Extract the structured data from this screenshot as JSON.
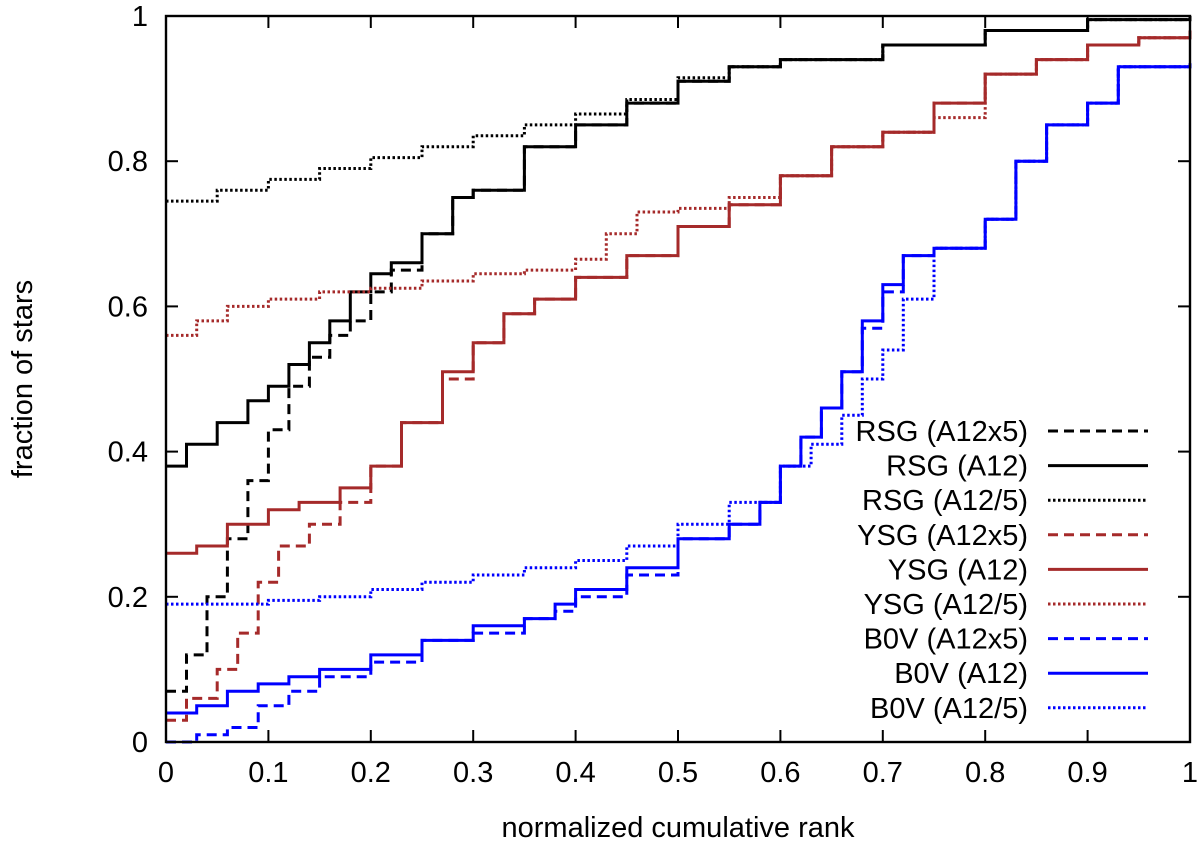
{
  "chart_data": {
    "type": "line",
    "title": "",
    "xlabel": "normalized cumulative rank",
    "ylabel": "fraction of stars",
    "xlim": [
      0,
      1
    ],
    "ylim": [
      0,
      1
    ],
    "x_ticks": [
      0,
      0.1,
      0.2,
      0.3,
      0.4,
      0.5,
      0.6,
      0.7,
      0.8,
      0.9,
      1
    ],
    "x_tick_labels": [
      "0",
      "0.1",
      "0.2",
      "0.3",
      "0.4",
      "0.5",
      "0.6",
      "0.7",
      "0.8",
      "0.9",
      "1"
    ],
    "y_ticks": [
      0,
      0.2,
      0.4,
      0.6,
      0.8,
      1
    ],
    "y_tick_labels": [
      "0",
      "0.2",
      "0.4",
      "0.6",
      "0.8",
      "1"
    ],
    "grid": false,
    "legend_position": "bottom-right",
    "series": [
      {
        "name": "RSG (A12x5)",
        "color": "#000000",
        "dash": "dashed",
        "points": [
          [
            0,
            0.07
          ],
          [
            0.02,
            0.12
          ],
          [
            0.04,
            0.2
          ],
          [
            0.06,
            0.28
          ],
          [
            0.08,
            0.36
          ],
          [
            0.1,
            0.43
          ],
          [
            0.12,
            0.49
          ],
          [
            0.14,
            0.53
          ],
          [
            0.16,
            0.56
          ],
          [
            0.18,
            0.58
          ],
          [
            0.2,
            0.62
          ],
          [
            0.22,
            0.65
          ],
          [
            0.25,
            0.7
          ],
          [
            0.28,
            0.75
          ],
          [
            0.3,
            0.76
          ],
          [
            0.35,
            0.82
          ],
          [
            0.4,
            0.85
          ],
          [
            0.45,
            0.88
          ],
          [
            0.5,
            0.91
          ],
          [
            0.55,
            0.93
          ],
          [
            0.6,
            0.94
          ],
          [
            0.7,
            0.96
          ],
          [
            0.8,
            0.98
          ],
          [
            0.9,
            0.995
          ],
          [
            1,
            1
          ]
        ]
      },
      {
        "name": "RSG (A12)",
        "color": "#000000",
        "dash": "solid",
        "points": [
          [
            0,
            0.38
          ],
          [
            0.02,
            0.41
          ],
          [
            0.05,
            0.44
          ],
          [
            0.08,
            0.47
          ],
          [
            0.1,
            0.49
          ],
          [
            0.12,
            0.52
          ],
          [
            0.14,
            0.55
          ],
          [
            0.16,
            0.58
          ],
          [
            0.18,
            0.62
          ],
          [
            0.2,
            0.645
          ],
          [
            0.22,
            0.66
          ],
          [
            0.25,
            0.7
          ],
          [
            0.28,
            0.75
          ],
          [
            0.3,
            0.76
          ],
          [
            0.35,
            0.82
          ],
          [
            0.4,
            0.85
          ],
          [
            0.45,
            0.88
          ],
          [
            0.5,
            0.91
          ],
          [
            0.55,
            0.93
          ],
          [
            0.6,
            0.94
          ],
          [
            0.7,
            0.96
          ],
          [
            0.8,
            0.98
          ],
          [
            0.9,
            0.995
          ],
          [
            1,
            1
          ]
        ]
      },
      {
        "name": "RSG (A12/5)",
        "color": "#000000",
        "dash": "dotted",
        "points": [
          [
            0,
            0.745
          ],
          [
            0.05,
            0.76
          ],
          [
            0.1,
            0.775
          ],
          [
            0.15,
            0.79
          ],
          [
            0.2,
            0.805
          ],
          [
            0.25,
            0.82
          ],
          [
            0.3,
            0.835
          ],
          [
            0.35,
            0.85
          ],
          [
            0.4,
            0.865
          ],
          [
            0.45,
            0.885
          ],
          [
            0.5,
            0.915
          ],
          [
            0.55,
            0.93
          ],
          [
            0.6,
            0.94
          ],
          [
            0.7,
            0.96
          ],
          [
            0.8,
            0.98
          ],
          [
            0.9,
            0.995
          ],
          [
            1,
            1
          ]
        ]
      },
      {
        "name": "YSG (A12x5)",
        "color": "#a52a2a",
        "dash": "dashed",
        "points": [
          [
            0,
            0.03
          ],
          [
            0.02,
            0.06
          ],
          [
            0.05,
            0.1
          ],
          [
            0.07,
            0.15
          ],
          [
            0.09,
            0.22
          ],
          [
            0.11,
            0.27
          ],
          [
            0.14,
            0.3
          ],
          [
            0.17,
            0.33
          ],
          [
            0.2,
            0.38
          ],
          [
            0.23,
            0.44
          ],
          [
            0.27,
            0.5
          ],
          [
            0.3,
            0.55
          ],
          [
            0.33,
            0.59
          ],
          [
            0.36,
            0.61
          ],
          [
            0.4,
            0.64
          ],
          [
            0.45,
            0.67
          ],
          [
            0.5,
            0.71
          ],
          [
            0.55,
            0.74
          ],
          [
            0.6,
            0.78
          ],
          [
            0.65,
            0.82
          ],
          [
            0.7,
            0.84
          ],
          [
            0.75,
            0.88
          ],
          [
            0.8,
            0.92
          ],
          [
            0.85,
            0.94
          ],
          [
            0.9,
            0.96
          ],
          [
            0.95,
            0.97
          ],
          [
            1,
            0.98
          ]
        ]
      },
      {
        "name": "YSG (A12)",
        "color": "#a52a2a",
        "dash": "solid",
        "points": [
          [
            0,
            0.26
          ],
          [
            0.03,
            0.27
          ],
          [
            0.06,
            0.3
          ],
          [
            0.1,
            0.32
          ],
          [
            0.13,
            0.33
          ],
          [
            0.17,
            0.35
          ],
          [
            0.2,
            0.38
          ],
          [
            0.23,
            0.44
          ],
          [
            0.27,
            0.51
          ],
          [
            0.3,
            0.55
          ],
          [
            0.33,
            0.59
          ],
          [
            0.36,
            0.61
          ],
          [
            0.4,
            0.64
          ],
          [
            0.45,
            0.67
          ],
          [
            0.5,
            0.71
          ],
          [
            0.55,
            0.74
          ],
          [
            0.6,
            0.78
          ],
          [
            0.65,
            0.82
          ],
          [
            0.7,
            0.84
          ],
          [
            0.75,
            0.88
          ],
          [
            0.8,
            0.92
          ],
          [
            0.85,
            0.94
          ],
          [
            0.9,
            0.96
          ],
          [
            0.95,
            0.97
          ],
          [
            1,
            0.98
          ]
        ]
      },
      {
        "name": "YSG (A12/5)",
        "color": "#a52a2a",
        "dash": "dotted",
        "points": [
          [
            0,
            0.56
          ],
          [
            0.03,
            0.58
          ],
          [
            0.06,
            0.6
          ],
          [
            0.1,
            0.61
          ],
          [
            0.15,
            0.62
          ],
          [
            0.2,
            0.625
          ],
          [
            0.25,
            0.635
          ],
          [
            0.3,
            0.645
          ],
          [
            0.35,
            0.65
          ],
          [
            0.4,
            0.665
          ],
          [
            0.43,
            0.7
          ],
          [
            0.46,
            0.73
          ],
          [
            0.5,
            0.735
          ],
          [
            0.55,
            0.75
          ],
          [
            0.6,
            0.78
          ],
          [
            0.65,
            0.82
          ],
          [
            0.7,
            0.84
          ],
          [
            0.75,
            0.86
          ],
          [
            0.8,
            0.92
          ],
          [
            0.85,
            0.94
          ],
          [
            0.9,
            0.96
          ],
          [
            0.95,
            0.97
          ],
          [
            1,
            0.98
          ]
        ]
      },
      {
        "name": "B0V (A12x5)",
        "color": "#0000ff",
        "dash": "dashed",
        "points": [
          [
            0,
            0.0
          ],
          [
            0.03,
            0.01
          ],
          [
            0.06,
            0.02
          ],
          [
            0.09,
            0.05
          ],
          [
            0.12,
            0.07
          ],
          [
            0.15,
            0.09
          ],
          [
            0.2,
            0.11
          ],
          [
            0.25,
            0.14
          ],
          [
            0.3,
            0.15
          ],
          [
            0.35,
            0.17
          ],
          [
            0.38,
            0.18
          ],
          [
            0.4,
            0.2
          ],
          [
            0.45,
            0.23
          ],
          [
            0.5,
            0.28
          ],
          [
            0.55,
            0.3
          ],
          [
            0.58,
            0.33
          ],
          [
            0.6,
            0.38
          ],
          [
            0.62,
            0.42
          ],
          [
            0.64,
            0.46
          ],
          [
            0.66,
            0.51
          ],
          [
            0.68,
            0.57
          ],
          [
            0.7,
            0.62
          ],
          [
            0.72,
            0.67
          ],
          [
            0.75,
            0.68
          ],
          [
            0.8,
            0.72
          ],
          [
            0.83,
            0.8
          ],
          [
            0.86,
            0.85
          ],
          [
            0.9,
            0.88
          ],
          [
            0.93,
            0.93
          ],
          [
            1,
            0.93
          ]
        ]
      },
      {
        "name": "B0V (A12)",
        "color": "#0000ff",
        "dash": "solid",
        "points": [
          [
            0,
            0.04
          ],
          [
            0.03,
            0.05
          ],
          [
            0.06,
            0.07
          ],
          [
            0.09,
            0.08
          ],
          [
            0.12,
            0.09
          ],
          [
            0.15,
            0.1
          ],
          [
            0.2,
            0.12
          ],
          [
            0.25,
            0.14
          ],
          [
            0.3,
            0.16
          ],
          [
            0.35,
            0.17
          ],
          [
            0.38,
            0.19
          ],
          [
            0.4,
            0.21
          ],
          [
            0.45,
            0.24
          ],
          [
            0.5,
            0.28
          ],
          [
            0.55,
            0.3
          ],
          [
            0.58,
            0.33
          ],
          [
            0.6,
            0.38
          ],
          [
            0.62,
            0.42
          ],
          [
            0.64,
            0.46
          ],
          [
            0.66,
            0.51
          ],
          [
            0.68,
            0.58
          ],
          [
            0.7,
            0.63
          ],
          [
            0.72,
            0.67
          ],
          [
            0.75,
            0.68
          ],
          [
            0.8,
            0.72
          ],
          [
            0.83,
            0.8
          ],
          [
            0.86,
            0.85
          ],
          [
            0.9,
            0.88
          ],
          [
            0.93,
            0.93
          ],
          [
            1,
            0.935
          ]
        ]
      },
      {
        "name": "B0V (A12/5)",
        "color": "#0000ff",
        "dash": "dotted",
        "points": [
          [
            0,
            0.19
          ],
          [
            0.05,
            0.19
          ],
          [
            0.1,
            0.195
          ],
          [
            0.15,
            0.2
          ],
          [
            0.2,
            0.21
          ],
          [
            0.25,
            0.22
          ],
          [
            0.3,
            0.23
          ],
          [
            0.35,
            0.24
          ],
          [
            0.4,
            0.25
          ],
          [
            0.45,
            0.27
          ],
          [
            0.5,
            0.3
          ],
          [
            0.55,
            0.33
          ],
          [
            0.6,
            0.38
          ],
          [
            0.63,
            0.41
          ],
          [
            0.66,
            0.45
          ],
          [
            0.68,
            0.5
          ],
          [
            0.7,
            0.54
          ],
          [
            0.72,
            0.61
          ],
          [
            0.75,
            0.68
          ],
          [
            0.8,
            0.72
          ],
          [
            0.83,
            0.8
          ],
          [
            0.86,
            0.85
          ],
          [
            0.9,
            0.88
          ],
          [
            0.93,
            0.93
          ],
          [
            1,
            0.935
          ]
        ]
      }
    ]
  }
}
